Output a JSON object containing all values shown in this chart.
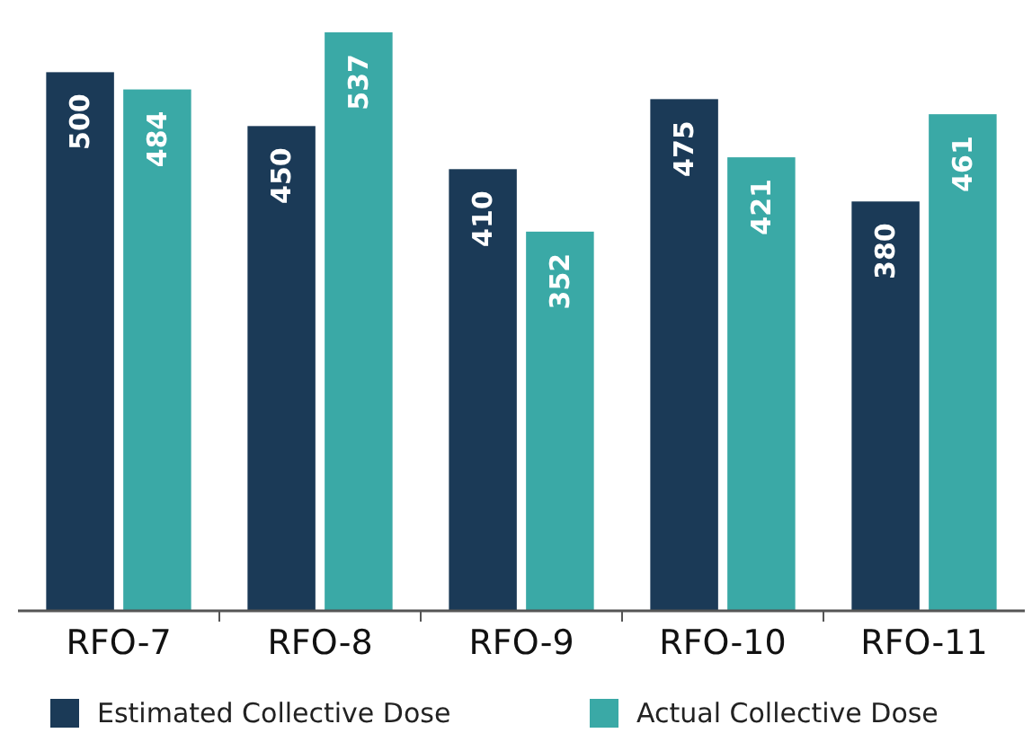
{
  "chart_data": {
    "type": "bar",
    "categories": [
      "RFO-7",
      "RFO-8",
      "RFO-9",
      "RFO-10",
      "RFO-11"
    ],
    "series": [
      {
        "name": "Estimated Collective Dose",
        "color": "#1b3a57",
        "values": [
          500,
          450,
          410,
          475,
          380
        ]
      },
      {
        "name": "Actual Collective Dose",
        "color": "#3aa9a6",
        "values": [
          484,
          537,
          352,
          421,
          461
        ]
      }
    ],
    "data_labels": true,
    "legend": "bottom"
  }
}
